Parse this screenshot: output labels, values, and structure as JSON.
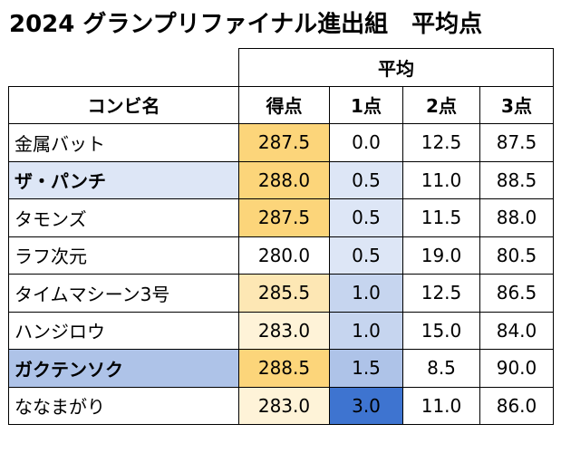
{
  "title": "2024 グランプリファイナル進出組　平均点",
  "table": {
    "group_header": "平均",
    "columns": [
      "コンビ名",
      "得点",
      "1点",
      "2点",
      "3点"
    ],
    "rows": [
      {
        "name": "金属バット",
        "score": "287.5",
        "p1": "0.0",
        "p2": "12.5",
        "p3": "87.5",
        "name_bold": false,
        "name_bg": "#ffffff",
        "score_bg": "#fcd57a",
        "p1_bg": "#ffffff"
      },
      {
        "name": "ザ・パンチ",
        "score": "288.0",
        "p1": "0.5",
        "p2": "11.0",
        "p3": "88.5",
        "name_bold": true,
        "name_bg": "#dde6f6",
        "score_bg": "#fcd57a",
        "p1_bg": "#dde6f6"
      },
      {
        "name": "タモンズ",
        "score": "287.5",
        "p1": "0.5",
        "p2": "11.5",
        "p3": "88.0",
        "name_bold": false,
        "name_bg": "#ffffff",
        "score_bg": "#fcd57a",
        "p1_bg": "#dde6f6"
      },
      {
        "name": "ラフ次元",
        "score": "280.0",
        "p1": "0.5",
        "p2": "19.0",
        "p3": "80.5",
        "name_bold": false,
        "name_bg": "#ffffff",
        "score_bg": "#ffffff",
        "p1_bg": "#dde6f6"
      },
      {
        "name": "タイムマシーン3号",
        "score": "285.5",
        "p1": "1.0",
        "p2": "12.5",
        "p3": "86.5",
        "name_bold": false,
        "name_bg": "#ffffff",
        "score_bg": "#fde7b4",
        "p1_bg": "#c6d5ef"
      },
      {
        "name": "ハンジロウ",
        "score": "283.0",
        "p1": "1.0",
        "p2": "15.0",
        "p3": "84.0",
        "name_bold": false,
        "name_bg": "#ffffff",
        "score_bg": "#fef3d8",
        "p1_bg": "#c6d5ef"
      },
      {
        "name": "ガクテンソク",
        "score": "288.5",
        "p1": "1.5",
        "p2": "8.5",
        "p3": "90.0",
        "name_bold": true,
        "name_bg": "#aec3e8",
        "score_bg": "#fcd57a",
        "p1_bg": "#aec3e8"
      },
      {
        "name": "ななまがり",
        "score": "283.0",
        "p1": "3.0",
        "p2": "11.0",
        "p3": "86.0",
        "name_bold": false,
        "name_bg": "#ffffff",
        "score_bg": "#fef3d8",
        "p1_bg": "#3e74d0"
      }
    ]
  }
}
